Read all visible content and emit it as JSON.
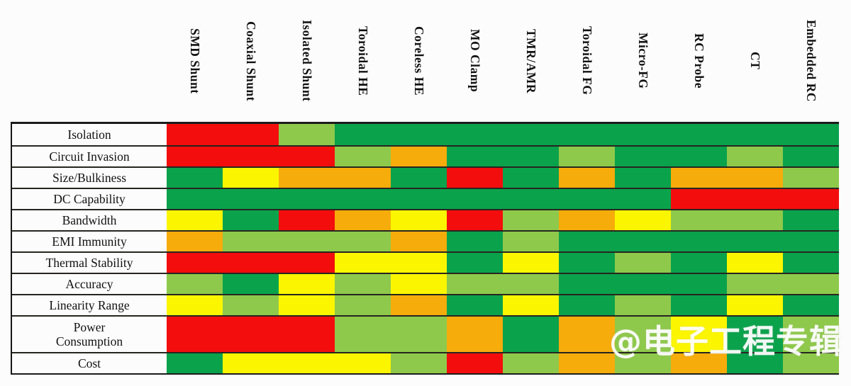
{
  "watermark": {
    "text": "@电子工程专辑",
    "color": "#FFFFFF"
  },
  "palette": {
    "red": "#F30D0D",
    "orange": "#F6AC0B",
    "yellow": "#FBF600",
    "lightgreen": "#8FC94B",
    "green": "#0BA24C"
  },
  "chart_data": {
    "type": "heatmap",
    "legend_position": "none",
    "grid": "horizontal-row-separators",
    "scale_worst_to_best": [
      "red",
      "orange",
      "yellow",
      "lightgreen",
      "green"
    ],
    "columns": [
      "SMD Shunt",
      "Coaxial Shunt",
      "Isolated Shunt",
      "Toroidal HE",
      "Coreless HE",
      "MO Clamp",
      "TMR/AMR",
      "Toroidal FG",
      "Micro-FG",
      "RC Probe",
      "CT",
      "Embedded RC"
    ],
    "rows": [
      {
        "label": "Isolation",
        "cells": [
          "red",
          "red",
          "lightgreen",
          "green",
          "green",
          "green",
          "green",
          "green",
          "green",
          "green",
          "green",
          "green"
        ]
      },
      {
        "label": "Circuit Invasion",
        "cells": [
          "red",
          "red",
          "red",
          "lightgreen",
          "orange",
          "green",
          "green",
          "lightgreen",
          "green",
          "green",
          "lightgreen",
          "green"
        ]
      },
      {
        "label": "Size/Bulkiness",
        "cells": [
          "green",
          "yellow",
          "orange",
          "orange",
          "green",
          "red",
          "green",
          "orange",
          "green",
          "orange",
          "orange",
          "lightgreen"
        ]
      },
      {
        "label": "DC Capability",
        "cells": [
          "green",
          "green",
          "green",
          "green",
          "green",
          "green",
          "green",
          "green",
          "green",
          "red",
          "red",
          "red"
        ]
      },
      {
        "label": "Bandwidth",
        "cells": [
          "yellow",
          "green",
          "red",
          "orange",
          "yellow",
          "red",
          "lightgreen",
          "orange",
          "yellow",
          "lightgreen",
          "lightgreen",
          "green"
        ]
      },
      {
        "label": "EMI Immunity",
        "cells": [
          "orange",
          "lightgreen",
          "lightgreen",
          "lightgreen",
          "orange",
          "green",
          "lightgreen",
          "green",
          "green",
          "green",
          "green",
          "green"
        ]
      },
      {
        "label": "Thermal Stability",
        "cells": [
          "red",
          "red",
          "red",
          "yellow",
          "yellow",
          "green",
          "yellow",
          "green",
          "lightgreen",
          "green",
          "yellow",
          "green"
        ]
      },
      {
        "label": "Accuracy",
        "cells": [
          "lightgreen",
          "green",
          "yellow",
          "lightgreen",
          "yellow",
          "lightgreen",
          "lightgreen",
          "green",
          "green",
          "green",
          "lightgreen",
          "lightgreen"
        ]
      },
      {
        "label": "Linearity Range",
        "cells": [
          "yellow",
          "lightgreen",
          "yellow",
          "lightgreen",
          "orange",
          "green",
          "yellow",
          "green",
          "lightgreen",
          "green",
          "yellow",
          "green"
        ]
      },
      {
        "label": "Power Consumption",
        "cells": [
          "red",
          "red",
          "red",
          "lightgreen",
          "lightgreen",
          "orange",
          "green",
          "orange",
          "lightgreen",
          "yellow",
          "green",
          "lightgreen"
        ]
      },
      {
        "label": "Cost",
        "cells": [
          "green",
          "yellow",
          "yellow",
          "yellow",
          "lightgreen",
          "red",
          "lightgreen",
          "orange",
          "lightgreen",
          "orange",
          "green",
          "lightgreen"
        ]
      }
    ]
  }
}
